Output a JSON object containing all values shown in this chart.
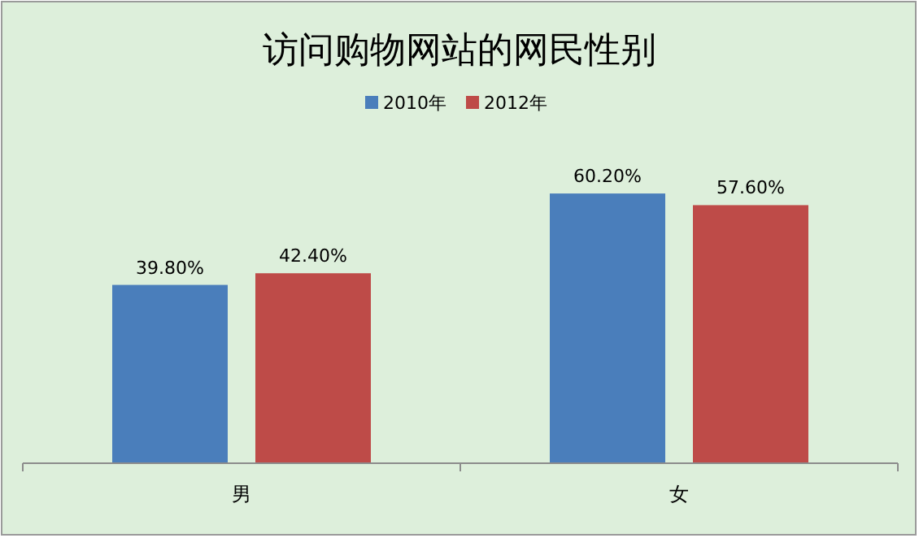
{
  "chart_data": {
    "type": "bar",
    "title": "访问购物网站的网民性别",
    "categories": [
      "男",
      "女"
    ],
    "series": [
      {
        "name": "2010年",
        "color": "#4a7ebb",
        "values": [
          39.8,
          60.2
        ],
        "value_labels": [
          "39.80%",
          "60.20%"
        ]
      },
      {
        "name": "2012年",
        "color": "#be4b48",
        "values": [
          42.4,
          57.6
        ],
        "value_labels": [
          "42.40%",
          "57.60%"
        ]
      }
    ],
    "legend": "top"
  }
}
